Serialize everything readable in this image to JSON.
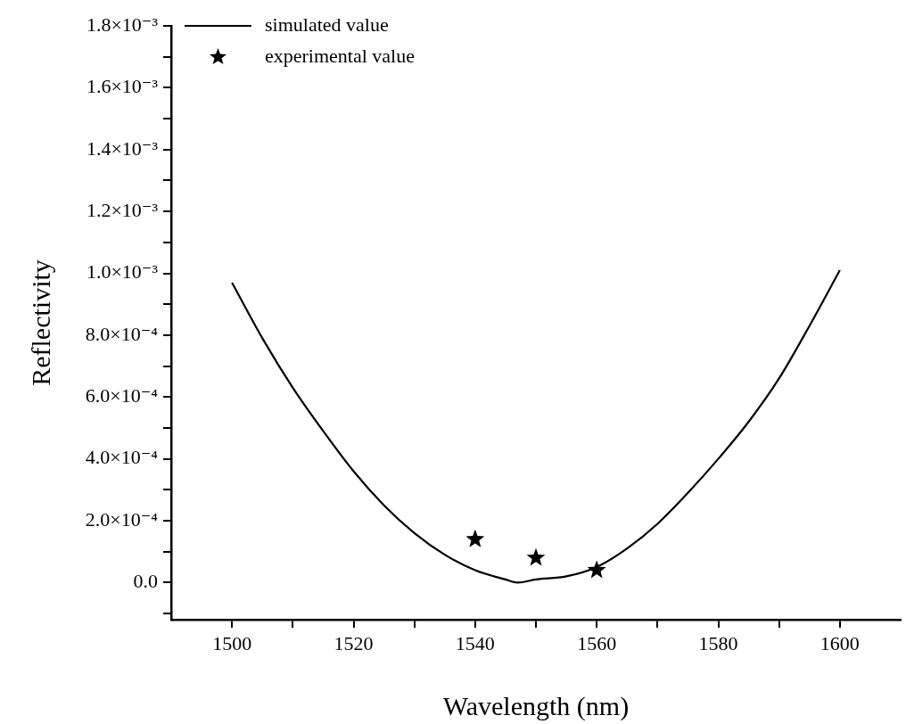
{
  "chart_data": {
    "type": "line",
    "xlabel": "Wavelength (nm)",
    "ylabel": "Reflectivity",
    "xlim": [
      1490,
      1610
    ],
    "ylim": [
      -0.00012,
      0.0018
    ],
    "xticks": [
      {
        "value": 1500,
        "label": "1500"
      },
      {
        "value": 1510,
        "label": null
      },
      {
        "value": 1520,
        "label": "1520"
      },
      {
        "value": 1530,
        "label": null
      },
      {
        "value": 1540,
        "label": "1540"
      },
      {
        "value": 1550,
        "label": null
      },
      {
        "value": 1560,
        "label": "1560"
      },
      {
        "value": 1570,
        "label": null
      },
      {
        "value": 1580,
        "label": "1580"
      },
      {
        "value": 1590,
        "label": null
      },
      {
        "value": 1600,
        "label": "1600"
      }
    ],
    "yticks": [
      {
        "value": -0.0001,
        "label": null
      },
      {
        "value": 0,
        "label": "0.0"
      },
      {
        "value": 0.0001,
        "label": null
      },
      {
        "value": 0.0002,
        "label": "2.0×10⁻⁴"
      },
      {
        "value": 0.0003,
        "label": null
      },
      {
        "value": 0.0004,
        "label": "4.0×10⁻⁴"
      },
      {
        "value": 0.0005,
        "label": null
      },
      {
        "value": 0.0006,
        "label": "6.0×10⁻⁴"
      },
      {
        "value": 0.0007,
        "label": null
      },
      {
        "value": 0.0008,
        "label": "8.0×10⁻⁴"
      },
      {
        "value": 0.0009,
        "label": null
      },
      {
        "value": 0.001,
        "label": "1.0×10⁻³"
      },
      {
        "value": 0.0011,
        "label": null
      },
      {
        "value": 0.0012,
        "label": "1.2×10⁻³"
      },
      {
        "value": 0.0013,
        "label": null
      },
      {
        "value": 0.0014,
        "label": "1.4×10⁻³"
      },
      {
        "value": 0.0015,
        "label": null
      },
      {
        "value": 0.0016,
        "label": "1.6×10⁻³"
      },
      {
        "value": 0.0017,
        "label": null
      },
      {
        "value": 0.0018,
        "label": "1.8×10⁻³"
      }
    ],
    "grid": false,
    "legend": "top left",
    "series": [
      {
        "name": "simulated value",
        "type": "line",
        "color": "#000000",
        "marker": "none",
        "line_style": "solid",
        "x": [
          1500,
          1505,
          1510,
          1515,
          1520,
          1525,
          1530,
          1535,
          1540,
          1545,
          1547,
          1550,
          1555,
          1560,
          1565,
          1570,
          1575,
          1580,
          1585,
          1590,
          1595,
          1600
        ],
        "values": [
          0.00097,
          0.00079,
          0.00063,
          0.00049,
          0.00036,
          0.00025,
          0.00016,
          9e-05,
          4e-05,
          1e-05,
          0,
          1e-05,
          2e-05,
          5e-05,
          0.00011,
          0.00019,
          0.00029,
          0.0004,
          0.00052,
          0.00066,
          0.00083,
          0.00101
        ]
      },
      {
        "name": "experimental value",
        "type": "scatter",
        "color": "#000000",
        "marker": "star",
        "x": [
          1540,
          1550,
          1560
        ],
        "values": [
          0.00014,
          8e-05,
          4e-05
        ]
      }
    ]
  }
}
